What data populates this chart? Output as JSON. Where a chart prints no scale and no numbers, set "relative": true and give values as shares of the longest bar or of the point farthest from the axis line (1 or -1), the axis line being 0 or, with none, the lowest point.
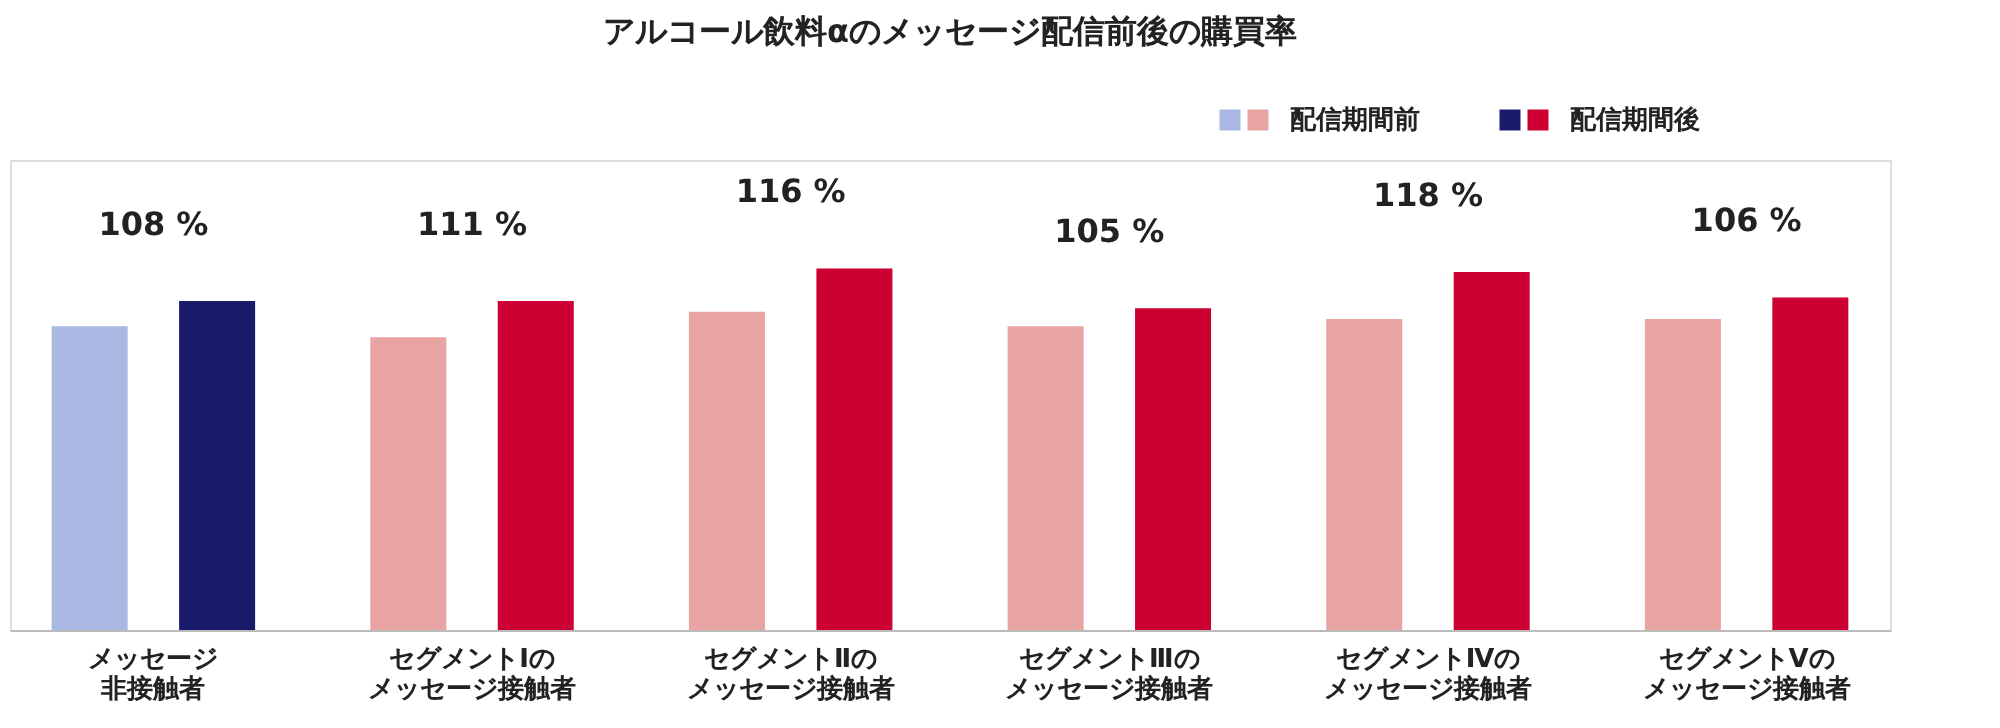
{
  "chart_data": {
    "type": "bar",
    "title": "アルコール飲料αのメッセージ配信前後の購買率",
    "relative": true,
    "categories": [
      "メッセージ非接触者",
      "セグメントⅠのメッセージ接触者",
      "セグメントⅡのメッセージ接触者",
      "セグメントⅢのメッセージ接触者",
      "セグメントⅣのメッセージ接触者",
      "セグメントⅤのメッセージ接触者"
    ],
    "series": [
      {
        "name": "配信期間前",
        "colors": [
          "#a9b9e3",
          "#e8a3a3",
          "#e8a3a3",
          "#e8a3a3",
          "#e8a3a3",
          "#e8a3a3"
        ],
        "values": [
          0.84,
          0.81,
          0.88,
          0.84,
          0.86,
          0.86
        ]
      },
      {
        "name": "配信期間後",
        "colors": [
          "#1a1a6b",
          "#cc0033",
          "#cc0033",
          "#cc0033",
          "#cc0033",
          "#cc0033"
        ],
        "values": [
          0.91,
          0.91,
          1.0,
          0.89,
          0.99,
          0.92
        ]
      }
    ],
    "annotations": [
      "108 %",
      "111 %",
      "116 %",
      "105 %",
      "118 %",
      "106 %"
    ],
    "legend": "top right",
    "grid": false
  }
}
